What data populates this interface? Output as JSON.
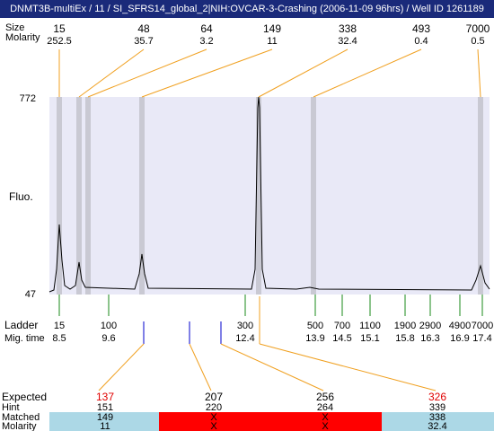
{
  "header": {
    "title": "DNMT3B-multiEx / 11 / SI_SFRS14_global_2|NIH:OVCAR-3-Crashing (2006-11-09 96hrs) / Well ID 1261189"
  },
  "peaks": {
    "size_label": "Size",
    "molarity_label": "Molarity",
    "sizes": [
      15,
      48,
      64,
      149,
      338,
      493,
      7000
    ],
    "molarity": [
      252.5,
      35.7,
      3.2,
      11,
      32.4,
      0.4,
      0.5
    ]
  },
  "plot": {
    "y_label": "Fluo.",
    "y_top": 772,
    "y_bottom": 47
  },
  "ladder": {
    "label": "Ladder",
    "mig_label": "Mig. time",
    "sizes": [
      15,
      100,
      300,
      500,
      700,
      1100,
      1900,
      2900,
      4900,
      7000
    ],
    "mig_times": [
      8.5,
      9.6,
      12.4,
      13.9,
      14.5,
      15.1,
      15.8,
      16.3,
      16.9,
      17.4
    ]
  },
  "results": {
    "expected_label": "Expected",
    "hint_label": "Hint",
    "matched_label": "Matched",
    "molarity_label": "Molarity",
    "expected": [
      137,
      207,
      256,
      326
    ],
    "hint": [
      151,
      220,
      264,
      339
    ],
    "matched": [
      149,
      "X",
      "X",
      338
    ],
    "molarity": [
      11,
      "X",
      "X",
      32.4
    ]
  }
}
